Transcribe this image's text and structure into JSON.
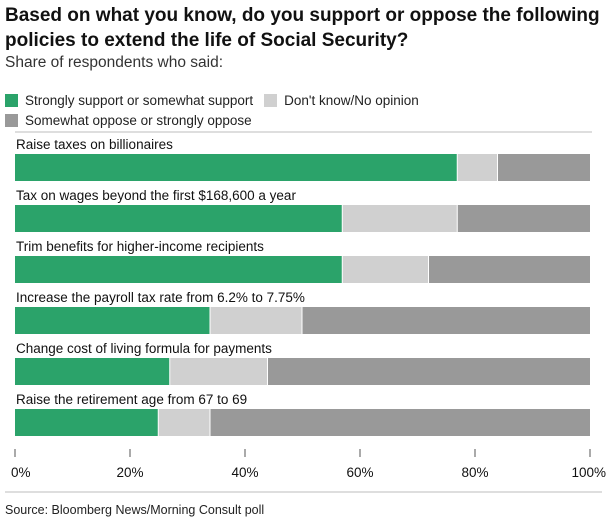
{
  "chart_data": {
    "type": "bar",
    "orientation": "horizontal",
    "stacked": true,
    "title": "Based on what you know, do you support or oppose the following policies to extend the life of Social Security?",
    "subtitle": "Share of respondents who said:",
    "categories": [
      "Raise taxes on billionaires",
      "Tax on wages beyond the first $168,600 a year",
      "Trim benefits for higher-income recipients",
      "Increase the payroll tax rate from 6.2% to 7.75%",
      "Change cost of living formula for payments",
      "Raise the retirement age from 67 to 69"
    ],
    "series": [
      {
        "name": "Strongly support or somewhat support",
        "color": "#2ba36a",
        "values": [
          77,
          57,
          57,
          34,
          27,
          25
        ]
      },
      {
        "name": "Don't know/No opinion",
        "color": "#d0d0d0",
        "values": [
          7,
          20,
          15,
          16,
          17,
          9
        ]
      },
      {
        "name": "Somewhat oppose or strongly oppose",
        "color": "#999999",
        "values": [
          16,
          23,
          28,
          50,
          56,
          66
        ]
      }
    ],
    "xlim": [
      0,
      100
    ],
    "xticks": [
      "0%",
      "20%",
      "40%",
      "60%",
      "80%",
      "100%"
    ],
    "legend_position": "top-left",
    "source": "Source: Bloomberg News/Morning Consult poll"
  }
}
